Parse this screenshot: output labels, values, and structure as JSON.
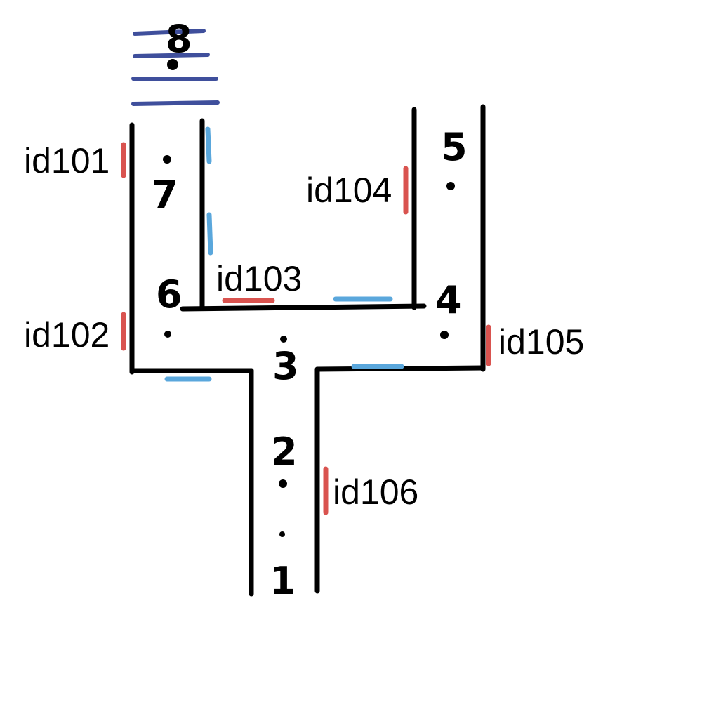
{
  "colors": {
    "wall": "#000000",
    "sensor_red": "#d9534f",
    "door_blue": "#5aa7dc",
    "stairs_navy": "#3f4f9c"
  },
  "sensors": [
    {
      "id": "id101",
      "label": "id101"
    },
    {
      "id": "id102",
      "label": "id102"
    },
    {
      "id": "id103",
      "label": "id103"
    },
    {
      "id": "id104",
      "label": "id104"
    },
    {
      "id": "id105",
      "label": "id105"
    },
    {
      "id": "id106",
      "label": "id106"
    }
  ],
  "nodes": [
    {
      "id": "1",
      "label": "1"
    },
    {
      "id": "2",
      "label": "2"
    },
    {
      "id": "3",
      "label": "3"
    },
    {
      "id": "4",
      "label": "4"
    },
    {
      "id": "5",
      "label": "5"
    },
    {
      "id": "6",
      "label": "6"
    },
    {
      "id": "7",
      "label": "7"
    },
    {
      "id": "8",
      "label": "8"
    }
  ]
}
